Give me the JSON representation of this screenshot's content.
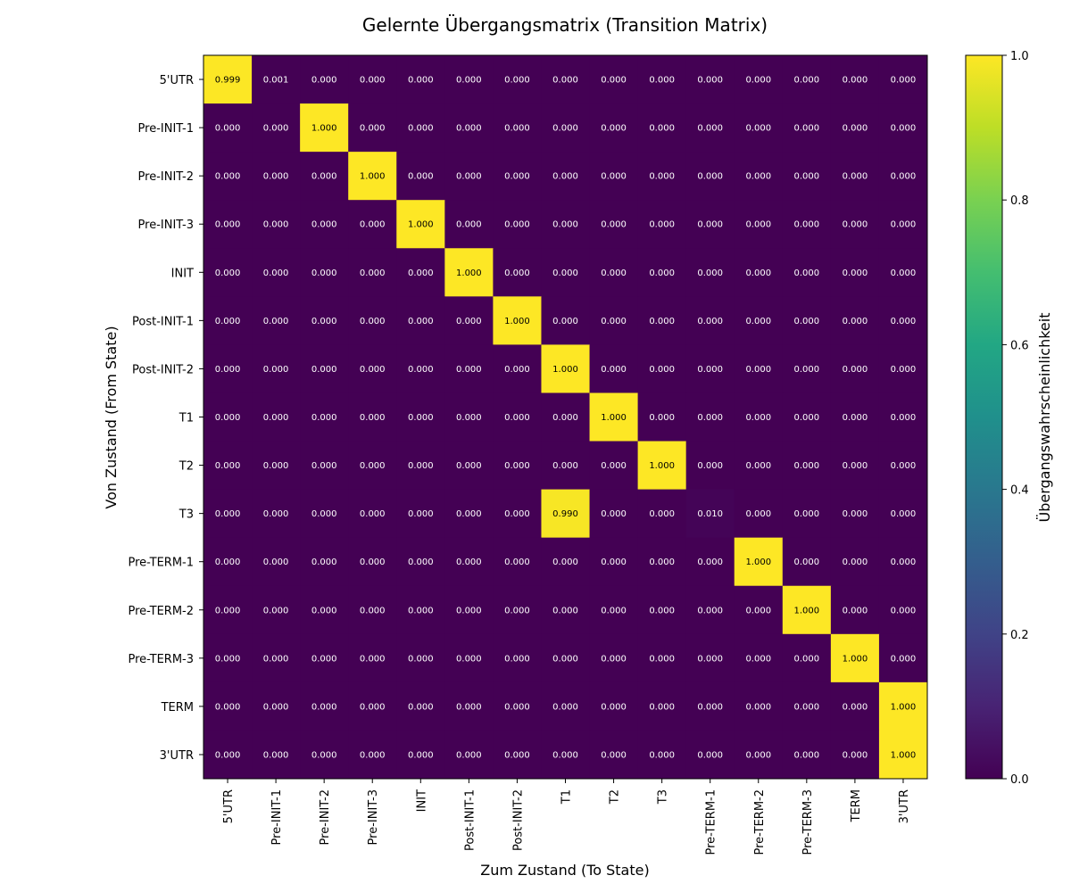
{
  "chart_data": {
    "type": "heatmap",
    "title": "Gelernte Übergangsmatrix (Transition Matrix)",
    "xlabel": "Zum Zustand (To State)",
    "ylabel": "Von Zustand (From State)",
    "colorbar_label": "Übergangswahrscheinlichkeit",
    "colormap": "viridis",
    "vmin": 0.0,
    "vmax": 1.0,
    "colorbar_ticks": [
      "0.0",
      "0.2",
      "0.4",
      "0.6",
      "0.8",
      "1.0"
    ],
    "row_labels": [
      "5'UTR",
      "Pre-INIT-1",
      "Pre-INIT-2",
      "Pre-INIT-3",
      "INIT",
      "Post-INIT-1",
      "Post-INIT-2",
      "T1",
      "T2",
      "T3",
      "Pre-TERM-1",
      "Pre-TERM-2",
      "Pre-TERM-3",
      "TERM",
      "3'UTR"
    ],
    "col_labels": [
      "5'UTR",
      "Pre-INIT-1",
      "Pre-INIT-2",
      "Pre-INIT-3",
      "INIT",
      "Post-INIT-1",
      "Post-INIT-2",
      "T1",
      "T2",
      "T3",
      "Pre-TERM-1",
      "Pre-TERM-2",
      "Pre-TERM-3",
      "TERM",
      "3'UTR"
    ],
    "values": [
      [
        0.999,
        0.001,
        0.0,
        0.0,
        0.0,
        0.0,
        0.0,
        0.0,
        0.0,
        0.0,
        0.0,
        0.0,
        0.0,
        0.0,
        0.0
      ],
      [
        0.0,
        0.0,
        1.0,
        0.0,
        0.0,
        0.0,
        0.0,
        0.0,
        0.0,
        0.0,
        0.0,
        0.0,
        0.0,
        0.0,
        0.0
      ],
      [
        0.0,
        0.0,
        0.0,
        1.0,
        0.0,
        0.0,
        0.0,
        0.0,
        0.0,
        0.0,
        0.0,
        0.0,
        0.0,
        0.0,
        0.0
      ],
      [
        0.0,
        0.0,
        0.0,
        0.0,
        1.0,
        0.0,
        0.0,
        0.0,
        0.0,
        0.0,
        0.0,
        0.0,
        0.0,
        0.0,
        0.0
      ],
      [
        0.0,
        0.0,
        0.0,
        0.0,
        0.0,
        1.0,
        0.0,
        0.0,
        0.0,
        0.0,
        0.0,
        0.0,
        0.0,
        0.0,
        0.0
      ],
      [
        0.0,
        0.0,
        0.0,
        0.0,
        0.0,
        0.0,
        1.0,
        0.0,
        0.0,
        0.0,
        0.0,
        0.0,
        0.0,
        0.0,
        0.0
      ],
      [
        0.0,
        0.0,
        0.0,
        0.0,
        0.0,
        0.0,
        0.0,
        1.0,
        0.0,
        0.0,
        0.0,
        0.0,
        0.0,
        0.0,
        0.0
      ],
      [
        0.0,
        0.0,
        0.0,
        0.0,
        0.0,
        0.0,
        0.0,
        0.0,
        1.0,
        0.0,
        0.0,
        0.0,
        0.0,
        0.0,
        0.0
      ],
      [
        0.0,
        0.0,
        0.0,
        0.0,
        0.0,
        0.0,
        0.0,
        0.0,
        0.0,
        1.0,
        0.0,
        0.0,
        0.0,
        0.0,
        0.0
      ],
      [
        0.0,
        0.0,
        0.0,
        0.0,
        0.0,
        0.0,
        0.0,
        0.99,
        0.0,
        0.0,
        0.01,
        0.0,
        0.0,
        0.0,
        0.0
      ],
      [
        0.0,
        0.0,
        0.0,
        0.0,
        0.0,
        0.0,
        0.0,
        0.0,
        0.0,
        0.0,
        0.0,
        1.0,
        0.0,
        0.0,
        0.0
      ],
      [
        0.0,
        0.0,
        0.0,
        0.0,
        0.0,
        0.0,
        0.0,
        0.0,
        0.0,
        0.0,
        0.0,
        0.0,
        1.0,
        0.0,
        0.0
      ],
      [
        0.0,
        0.0,
        0.0,
        0.0,
        0.0,
        0.0,
        0.0,
        0.0,
        0.0,
        0.0,
        0.0,
        0.0,
        0.0,
        1.0,
        0.0
      ],
      [
        0.0,
        0.0,
        0.0,
        0.0,
        0.0,
        0.0,
        0.0,
        0.0,
        0.0,
        0.0,
        0.0,
        0.0,
        0.0,
        0.0,
        1.0
      ],
      [
        0.0,
        0.0,
        0.0,
        0.0,
        0.0,
        0.0,
        0.0,
        0.0,
        0.0,
        0.0,
        0.0,
        0.0,
        0.0,
        0.0,
        1.0
      ]
    ],
    "value_format": "0.000"
  }
}
